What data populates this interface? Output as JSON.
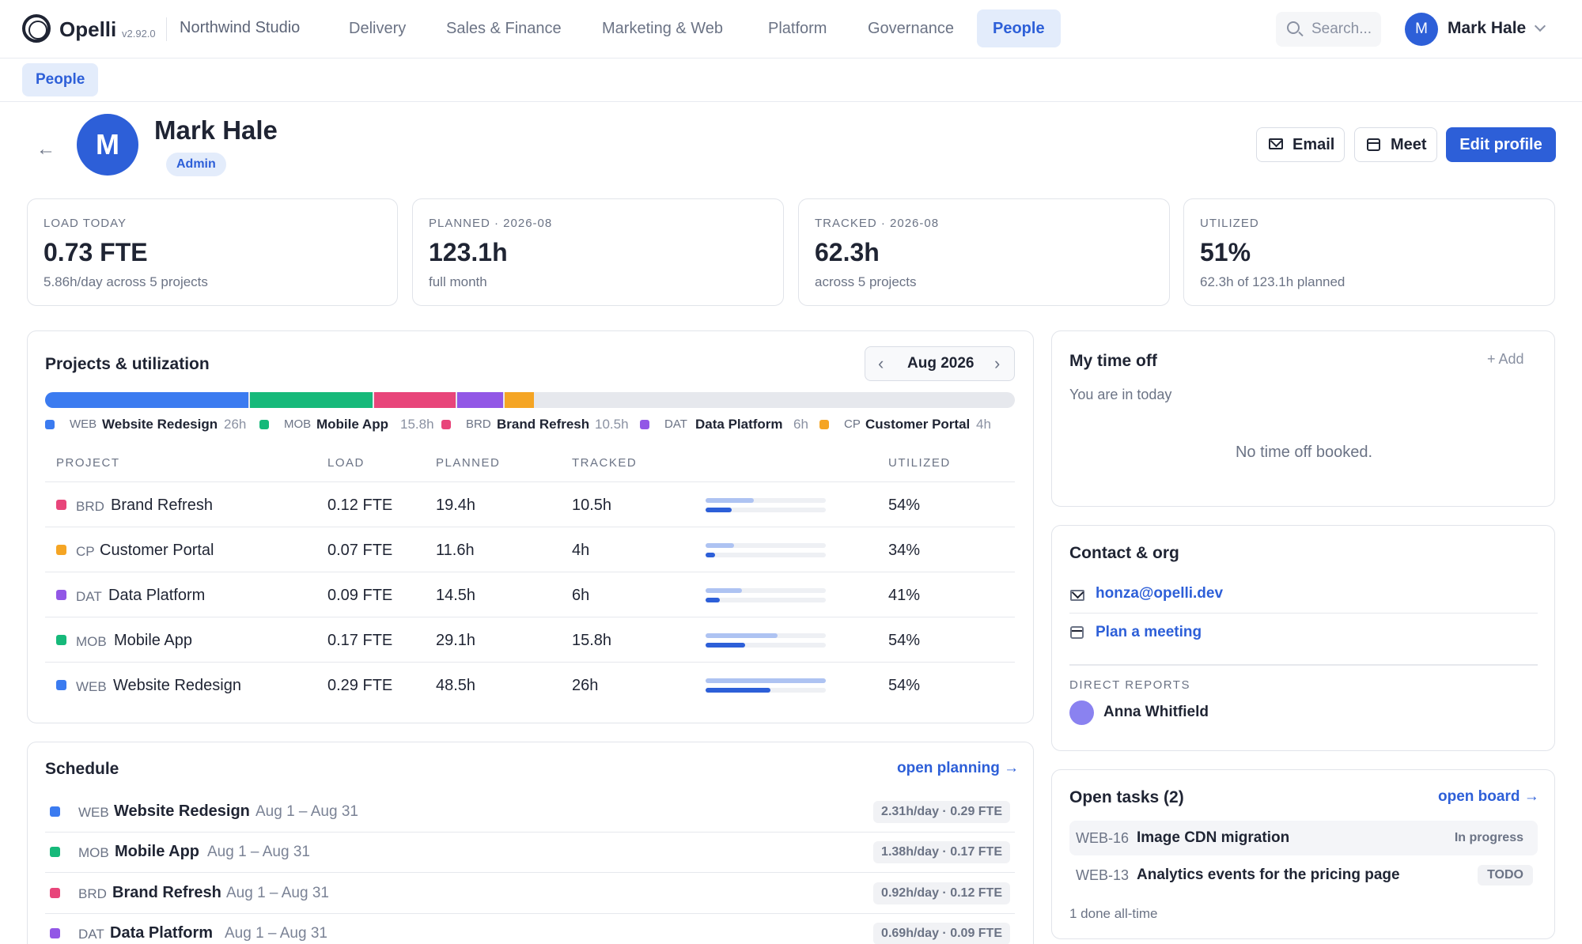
{
  "app": {
    "name": "Opelli",
    "version": "v2.92.0",
    "org": "Northwind Studio"
  },
  "nav": [
    "Delivery",
    "Sales & Finance",
    "Marketing & Web",
    "Platform",
    "Governance",
    "People"
  ],
  "search": {
    "placeholder": "Search..."
  },
  "user": {
    "initial": "M",
    "name": "Mark Hale"
  },
  "breadcrumb": "People",
  "profile": {
    "initial": "M",
    "name": "Mark Hale",
    "role": "Admin"
  },
  "actions": {
    "email": "Email",
    "meet": "Meet",
    "edit": "Edit profile"
  },
  "kpis": [
    {
      "label": "LOAD TODAY",
      "value": "0.73 FTE",
      "sub": "5.86h/day across 5 projects"
    },
    {
      "label": "PLANNED · 2026-08",
      "value": "123.1h",
      "sub": "full month"
    },
    {
      "label": "TRACKED · 2026-08",
      "value": "62.3h",
      "sub": "across 5 projects"
    },
    {
      "label": "UTILIZED",
      "value": "51%",
      "sub": "62.3h of 123.1h planned"
    }
  ],
  "projects": {
    "title": "Projects & utilization",
    "month": "Aug 2026",
    "stack_total_hours": 123.1,
    "legend": [
      {
        "code": "WEB",
        "name": "Website Redesign",
        "hours": "26h",
        "hours_num": 26,
        "color": "#3b7bf0"
      },
      {
        "code": "MOB",
        "name": "Mobile App",
        "hours": "15.8h",
        "hours_num": 15.8,
        "color": "#16b97a"
      },
      {
        "code": "BRD",
        "name": "Brand Refresh",
        "hours": "10.5h",
        "hours_num": 10.5,
        "color": "#e8457a"
      },
      {
        "code": "DAT",
        "name": "Data Platform",
        "hours": "6h",
        "hours_num": 6,
        "color": "#9257e6"
      },
      {
        "code": "CP",
        "name": "Customer Portal",
        "hours": "4h",
        "hours_num": 4,
        "color": "#f5a524"
      }
    ],
    "columns": {
      "project": "PROJECT",
      "load": "LOAD",
      "planned": "PLANNED",
      "tracked": "TRACKED",
      "utilized": "UTILIZED"
    },
    "rows": [
      {
        "code": "BRD",
        "name": "Brand Refresh",
        "load": "0.12 FTE",
        "planned": "19.4h",
        "tracked": "10.5h",
        "utilized": "54%",
        "color": "#e8457a",
        "planned_frac": 0.4,
        "tracked_frac": 0.22
      },
      {
        "code": "CP",
        "name": "Customer Portal",
        "load": "0.07 FTE",
        "planned": "11.6h",
        "tracked": "4h",
        "utilized": "34%",
        "color": "#f5a524",
        "planned_frac": 0.24,
        "tracked_frac": 0.08
      },
      {
        "code": "DAT",
        "name": "Data Platform",
        "load": "0.09 FTE",
        "planned": "14.5h",
        "tracked": "6h",
        "utilized": "41%",
        "color": "#9257e6",
        "planned_frac": 0.3,
        "tracked_frac": 0.12
      },
      {
        "code": "MOB",
        "name": "Mobile App",
        "load": "0.17 FTE",
        "planned": "29.1h",
        "tracked": "15.8h",
        "utilized": "54%",
        "color": "#16b97a",
        "planned_frac": 0.6,
        "tracked_frac": 0.33
      },
      {
        "code": "WEB",
        "name": "Website Redesign",
        "load": "0.29 FTE",
        "planned": "48.5h",
        "tracked": "26h",
        "utilized": "54%",
        "color": "#3b7bf0",
        "planned_frac": 1.0,
        "tracked_frac": 0.54
      }
    ]
  },
  "schedule": {
    "title": "Schedule",
    "link": "open planning →",
    "rows": [
      {
        "code": "WEB",
        "name": "Website Redesign",
        "dates": "Aug 1 – Aug 31",
        "rate": "2.31h/day · 0.29 FTE",
        "color": "#3b7bf0"
      },
      {
        "code": "MOB",
        "name": "Mobile App",
        "dates": "Aug 1 – Aug 31",
        "rate": "1.38h/day · 0.17 FTE",
        "color": "#16b97a"
      },
      {
        "code": "BRD",
        "name": "Brand Refresh",
        "dates": "Aug 1 – Aug 31",
        "rate": "0.92h/day · 0.12 FTE",
        "color": "#e8457a"
      },
      {
        "code": "DAT",
        "name": "Data Platform",
        "dates": "Aug 1 – Aug 31",
        "rate": "0.69h/day · 0.09 FTE",
        "color": "#9257e6"
      }
    ]
  },
  "timeoff": {
    "title": "My time off",
    "add": "+ Add",
    "status": "You are in today",
    "empty": "No time off booked."
  },
  "contact": {
    "title": "Contact & org",
    "email": "honza@opelli.dev",
    "meeting": "Plan a meeting",
    "reports_label": "DIRECT REPORTS",
    "report_name": "Anna Whitfield"
  },
  "tasks": {
    "title": "Open tasks (2)",
    "link": "open board →",
    "items": [
      {
        "code": "WEB-16",
        "title": "Image CDN migration",
        "status": "In progress"
      },
      {
        "code": "WEB-13",
        "title": "Analytics events for the pricing page",
        "status": "TODO"
      }
    ],
    "footer": "1 done all-time"
  },
  "colors": {
    "accent": "#2d5fd8",
    "accent_soft": "#e3ecfb",
    "planned_bar": "#aec3f2"
  }
}
